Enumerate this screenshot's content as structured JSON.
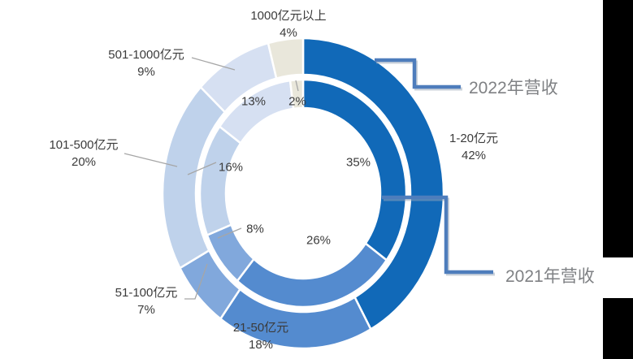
{
  "chart_data": {
    "type": "pie",
    "variant": "nested-donut",
    "title": "",
    "categories": [
      "1-20亿元",
      "21-50亿元",
      "51-100亿元",
      "101-500亿元",
      "501-1000亿元",
      "1000亿元以上"
    ],
    "series": [
      {
        "name": "2022年营收",
        "ring": "outer",
        "unit": "%",
        "values": [
          42,
          18,
          7,
          20,
          9,
          4
        ]
      },
      {
        "name": "2021年营收",
        "ring": "inner",
        "unit": "%",
        "values": [
          35,
          26,
          8,
          16,
          13,
          2
        ]
      }
    ],
    "colors": [
      "#1169B8",
      "#548BCF",
      "#81A8DC",
      "#BFD2EB",
      "#D6E0F2",
      "#E9E7DB"
    ],
    "start_angle_deg": 0,
    "direction": "clockwise",
    "legend_position": "callout-labels",
    "grid": false
  },
  "callout_labels": [
    {
      "name": "1000亿元以上",
      "pct": "4%"
    },
    {
      "name": "501-1000亿元",
      "pct": "9%"
    },
    {
      "name": "101-500亿元",
      "pct": "20%"
    },
    {
      "name": "51-100亿元",
      "pct": "7%"
    },
    {
      "name": "21-50亿元",
      "pct": "18%"
    },
    {
      "name": "1-20亿元",
      "pct": "42%"
    }
  ],
  "inner_labels": [
    "35%",
    "26%",
    "8%",
    "16%",
    "13%",
    "2%"
  ],
  "series_callouts": [
    {
      "label": "2022年营收"
    },
    {
      "label": "2021年营收"
    }
  ],
  "colors": {
    "background": "#FFFFFF",
    "label_text": "#3B3B3B",
    "series_label_text": "#7F8184",
    "connector": "#4E7DBC",
    "connector_shadow": "#9AA7B8",
    "leader": "#A6A6A6",
    "side_bar": "#000000",
    "slice_border": "#FFFFFF"
  }
}
